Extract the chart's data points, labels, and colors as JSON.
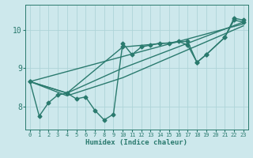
{
  "xlabel": "Humidex (Indice chaleur)",
  "ylabel": "",
  "bg_color": "#cde8ec",
  "line_color": "#2a7a6e",
  "grid_color": "#aed4d8",
  "xlim": [
    -0.5,
    23.5
  ],
  "ylim": [
    7.4,
    10.65
  ],
  "yticks": [
    8,
    9,
    10
  ],
  "xticks": [
    0,
    1,
    2,
    3,
    4,
    5,
    6,
    7,
    8,
    9,
    10,
    11,
    12,
    13,
    14,
    15,
    16,
    17,
    18,
    19,
    20,
    21,
    22,
    23
  ],
  "series": [
    {
      "x": [
        0,
        1,
        2,
        3,
        4,
        5,
        6,
        7,
        8,
        9,
        10,
        11,
        12,
        13,
        14,
        15,
        16,
        17,
        18,
        19,
        21,
        22,
        23
      ],
      "y": [
        8.65,
        7.75,
        8.1,
        8.3,
        8.35,
        8.2,
        8.25,
        7.9,
        7.65,
        7.8,
        9.65,
        9.35,
        9.55,
        9.6,
        9.65,
        9.65,
        9.7,
        9.6,
        9.15,
        9.35,
        9.8,
        10.25,
        10.2
      ],
      "marker": "D",
      "markersize": 2.5,
      "linewidth": 1.0
    },
    {
      "x": [
        0,
        4,
        10,
        17,
        18,
        19,
        21,
        22,
        23
      ],
      "y": [
        8.65,
        8.35,
        9.55,
        9.7,
        9.15,
        9.35,
        9.8,
        10.3,
        10.25
      ],
      "marker": "D",
      "markersize": 2.5,
      "linewidth": 1.0
    },
    {
      "x": [
        0,
        4,
        10,
        23
      ],
      "y": [
        8.65,
        8.35,
        9.0,
        10.2
      ],
      "marker": null,
      "linewidth": 1.0
    },
    {
      "x": [
        0,
        4,
        10,
        23
      ],
      "y": [
        8.65,
        8.28,
        8.75,
        10.1
      ],
      "marker": null,
      "linewidth": 1.0
    },
    {
      "x": [
        0,
        23
      ],
      "y": [
        8.65,
        10.15
      ],
      "marker": null,
      "linewidth": 1.0
    }
  ]
}
